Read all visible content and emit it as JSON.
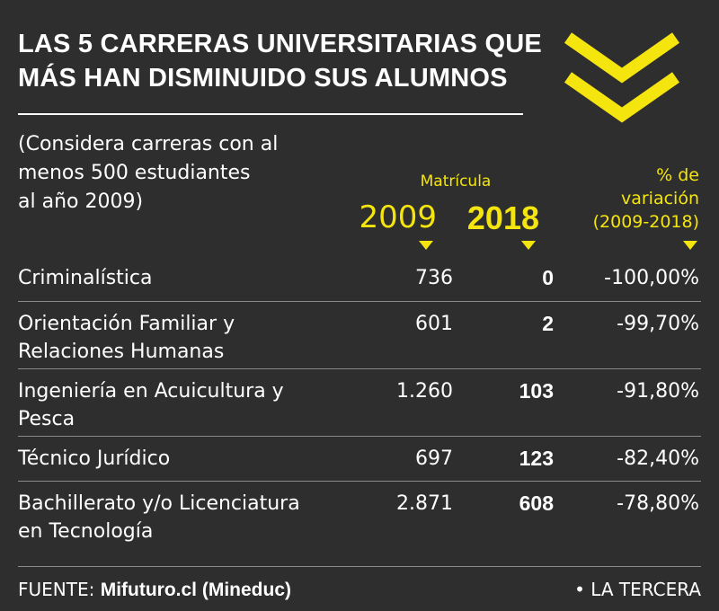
{
  "title": "LAS 5 CARRERAS UNIVERSITARIAS QUE\nMÁS HAN DISMINUIDO SUS ALUMNOS",
  "note": "(Considera carreras con al\nmenos 500 estudiantes\nal año 2009)",
  "header": {
    "matricula": "Matrícula",
    "year_2009": "2009",
    "year_2018": "2018",
    "variation": "% de\nvariación\n(2009-2018)"
  },
  "colors": {
    "background": "#2e2e2e",
    "accent": "#f5e50f",
    "text": "#ffffff"
  },
  "chart_data": {
    "type": "table",
    "columns": [
      "2009",
      "2018",
      "% de variación (2009-2018)"
    ],
    "rows": [
      {
        "career": "Criminalística",
        "v2009": "736",
        "v2018": "0",
        "pct": "-100,00%"
      },
      {
        "career": "Orientación Familiar y\nRelaciones Humanas",
        "v2009": "601",
        "v2018": "2",
        "pct": "-99,70%"
      },
      {
        "career": "Ingeniería en Acuicultura y\nPesca",
        "v2009": "1.260",
        "v2018": "103",
        "pct": "-91,80%"
      },
      {
        "career": "Técnico Jurídico",
        "v2009": "697",
        "v2018": "123",
        "pct": "-82,40%"
      },
      {
        "career": "Bachillerato y/o Licenciatura\nen Tecnología",
        "v2009": "2.871",
        "v2018": "608",
        "pct": "-78,80%"
      }
    ]
  },
  "footer": {
    "source_label": "FUENTE: ",
    "source_value": "Mifuturo.cl (Mineduc)",
    "credit": "• LA TERCERA"
  },
  "icons": {
    "header_icon": "double-chevron-down-icon",
    "column_marker": "triangle-down-icon"
  }
}
